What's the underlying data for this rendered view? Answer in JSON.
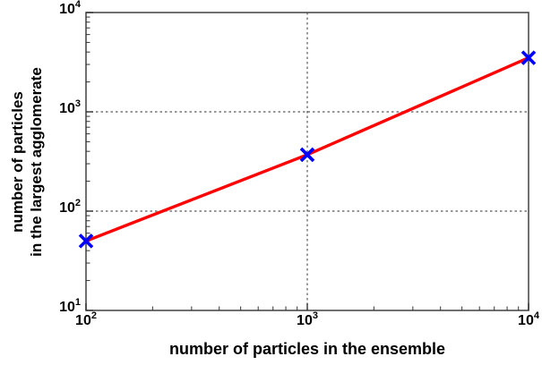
{
  "chart_data": {
    "type": "line",
    "scale": "log-log",
    "title": "",
    "xlabel": "number of particles in the ensemble",
    "ylabel_lines": [
      "number of particles",
      "in the largest agglomerate"
    ],
    "x": [
      100,
      1000,
      10000
    ],
    "y": [
      50,
      370,
      3500
    ],
    "xlim": [
      100,
      10000
    ],
    "ylim": [
      10,
      10000
    ],
    "x_tick_exponents": [
      2,
      3,
      4
    ],
    "y_tick_exponents": [
      1,
      2,
      3,
      4
    ],
    "tick_label_base": "10",
    "grid": {
      "vertical_at": [
        1000
      ],
      "horizontal_at": [
        100,
        1000
      ],
      "style": "dashed",
      "color": "#595959"
    },
    "line_color": "#ff0000",
    "marker": {
      "shape": "x",
      "color": "#0000ff"
    },
    "frame_color": "#4d4d4d",
    "tick_color": "#333333",
    "background": "#ffffff",
    "legend": null
  }
}
